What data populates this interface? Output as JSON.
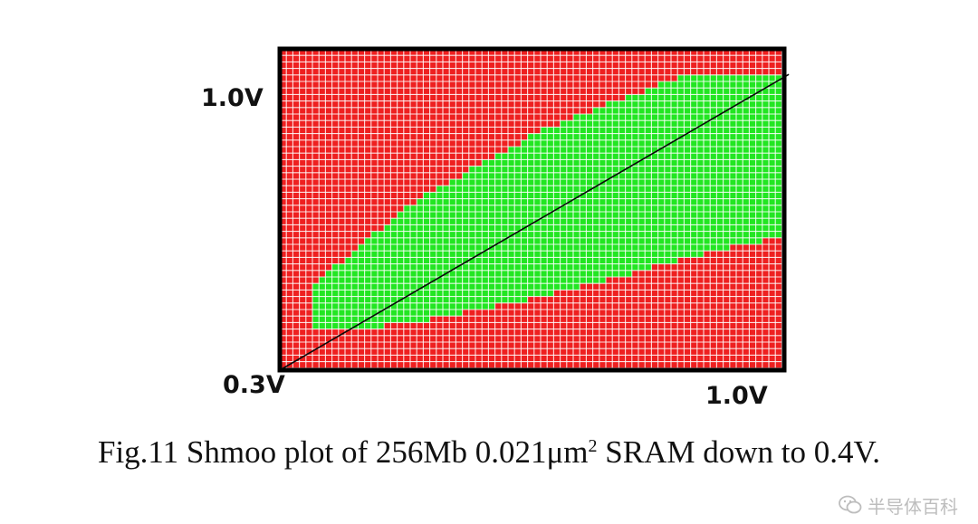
{
  "chart_data": {
    "type": "heatmap",
    "title": "",
    "colors": {
      "pass": "#22e622",
      "fail": "#ee2020",
      "grid": "#ffffff",
      "border": "#000000",
      "diagonal": "#0a0a0a"
    },
    "x_tick_labels": [
      "0.3V",
      "1.0V"
    ],
    "y_tick_labels": [
      "0.3V",
      "1.0V"
    ],
    "grid": true,
    "pass_region": {
      "upper_boundary": [
        [
          0.35,
          0.52
        ],
        [
          0.5,
          0.73
        ],
        [
          0.7,
          0.92
        ],
        [
          0.9,
          1.05
        ],
        [
          0.96,
          1.06
        ]
      ],
      "lower_boundary": [
        [
          0.35,
          0.4
        ],
        [
          0.5,
          0.42
        ],
        [
          0.7,
          0.49
        ],
        [
          0.9,
          0.58
        ],
        [
          1.07,
          0.65
        ]
      ],
      "x_start": 0.35
    },
    "diagonal": [
      [
        0.3,
        0.3
      ],
      [
        1.07,
        1.06
      ]
    ]
  },
  "caption": {
    "prefix": "Fig.11 Shmoo plot of 256Mb 0.021μm",
    "superscript": "2",
    "suffix": " SRAM down to 0.4V."
  },
  "watermark": {
    "text": "半导体百科",
    "icon": "wechat-icon"
  }
}
